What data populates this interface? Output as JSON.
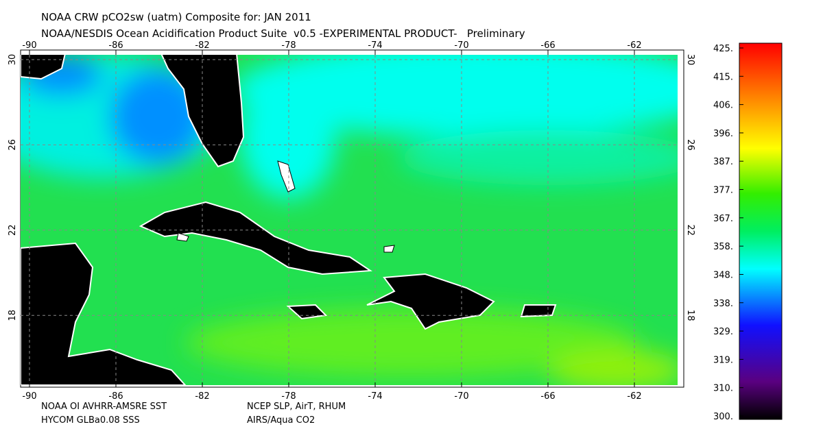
{
  "header": {
    "title": "NOAA CRW pCO2sw (uatm) Composite for: JAN 2011",
    "subtitle": "NOAA/NESDIS Ocean Acidification Product Suite  v0.5 -EXPERIMENTAL PRODUCT-   Preliminary"
  },
  "longitude_labels": [
    -90,
    -86,
    -82,
    -78,
    -74,
    -70,
    -66,
    -62
  ],
  "latitude_labels": [
    30,
    26,
    22,
    18
  ],
  "colorbar_labels": [
    "425.",
    "415.",
    "406.",
    "396.",
    "387.",
    "377.",
    "367.",
    "358.",
    "348.",
    "338.",
    "329.",
    "319.",
    "310.",
    "300."
  ],
  "footer": {
    "left": [
      "NOAA OI AVHRR-AMSRE SST",
      "HYCOM GLBa0.08 SSS"
    ],
    "right": [
      "NCEP SLP, AirT, RHUM",
      "AIRS/Aqua CO2"
    ]
  }
}
